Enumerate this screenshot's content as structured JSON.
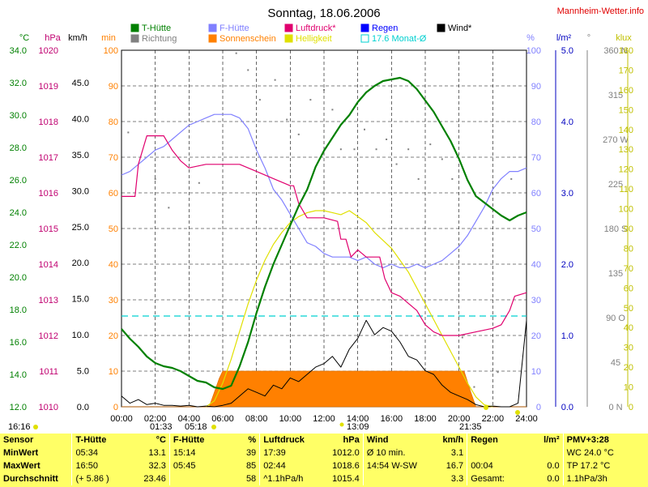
{
  "header": {
    "title": "Sonntag, 18.06.2006",
    "site": "Mannheim-Wetter.info"
  },
  "legend": [
    {
      "label": "T-Hütte",
      "color": "#008000"
    },
    {
      "label": "F-Hütte",
      "color": "#8080ff"
    },
    {
      "label": "Luftdruck*",
      "color": "#e0006e"
    },
    {
      "label": "Regen",
      "color": "#0000ff"
    },
    {
      "label": "Wind*",
      "color": "#000000"
    },
    {
      "label": "Richtung",
      "color": "#808080"
    },
    {
      "label": "Sonnenschein",
      "color": "#ff8000"
    },
    {
      "label": "Helligkeit",
      "color": "#e0e000"
    },
    {
      "label": "17.6 Monat-Ø",
      "color": "#00d0d0"
    }
  ],
  "axis_units": {
    "temp": "°C",
    "pressure": "hPa",
    "wind": "km/h",
    "sun": "min",
    "humidity": "%",
    "rain": "l/m²",
    "direction": "°",
    "light": "klux"
  },
  "axes": {
    "temp": {
      "labels": [
        "12.0",
        "14.0",
        "16.0",
        "18.0",
        "20.0",
        "22.0",
        "24.0",
        "26.0",
        "28.0",
        "30.0",
        "32.0",
        "34.0"
      ],
      "color": "#008000"
    },
    "pressure": {
      "labels": [
        "1010",
        "1011",
        "1012",
        "1013",
        "1014",
        "1015",
        "1016",
        "1017",
        "1018",
        "1019",
        "1020"
      ],
      "color": "#c00070"
    },
    "wind": {
      "labels": [
        "0.0",
        "5.0",
        "10.0",
        "15.0",
        "20.0",
        "25.0",
        "30.0",
        "35.0",
        "40.0",
        "45.0"
      ],
      "color": "#000000"
    },
    "sun": {
      "labels": [
        "0",
        "10",
        "20",
        "30",
        "40",
        "50",
        "60",
        "70",
        "80",
        "90",
        "100"
      ],
      "color": "#ff8000"
    },
    "humidity": {
      "labels": [
        "0",
        "10",
        "20",
        "30",
        "40",
        "50",
        "60",
        "70",
        "80",
        "90",
        "100"
      ],
      "color": "#8080ff"
    },
    "rain": {
      "labels": [
        "0.0",
        "1.0",
        "2.0",
        "3.0",
        "4.0",
        "5.0"
      ],
      "color": "#0000c0"
    },
    "direction": {
      "labels": [
        "0 N",
        "45",
        "90 O",
        "135",
        "180 S",
        "225",
        "270 W",
        "315",
        "360 N"
      ],
      "color": "#808080"
    },
    "light": {
      "labels": [
        "0",
        "10",
        "20",
        "30",
        "40",
        "50",
        "60",
        "70",
        "80",
        "90",
        "100",
        "110",
        "120",
        "130",
        "140",
        "150",
        "160",
        "170",
        "180"
      ],
      "color": "#c0c000"
    },
    "time": {
      "labels": [
        "00:00",
        "02:00",
        "04:00",
        "06:00",
        "08:00",
        "10:00",
        "12:00",
        "14:00",
        "16:00",
        "18:00",
        "20:00",
        "22:00",
        "24:00"
      ]
    }
  },
  "sun_markers": {
    "moonrise": "16:16",
    "sunrise_icon": "01:33",
    "sunrise": "05:18",
    "noon": "13:09",
    "sunset": "21:35"
  },
  "chart_data": {
    "type": "line",
    "x_unit": "hour of day",
    "xlim": [
      0,
      24
    ],
    "monthly_mean_temp": 17.6,
    "series": [
      {
        "name": "T-Hütte",
        "unit": "°C",
        "ylim": [
          12,
          34
        ],
        "x": [
          0,
          0.5,
          1,
          1.5,
          2,
          2.5,
          3,
          3.5,
          4,
          4.5,
          5,
          5.5,
          6,
          6.5,
          7,
          7.5,
          8,
          8.5,
          9,
          9.5,
          10,
          10.5,
          11,
          11.5,
          12,
          12.5,
          13,
          13.5,
          14,
          14.5,
          15,
          15.5,
          16,
          16.5,
          17,
          17.5,
          18,
          18.5,
          19,
          19.5,
          20,
          20.5,
          21,
          21.5,
          22,
          22.5,
          23,
          23.5,
          24
        ],
        "values": [
          16.8,
          16.2,
          15.7,
          15.1,
          14.7,
          14.5,
          14.4,
          14.2,
          13.9,
          13.6,
          13.5,
          13.2,
          13.1,
          13.3,
          14.5,
          16.0,
          17.8,
          19.4,
          20.8,
          22.0,
          23.2,
          24.4,
          25.4,
          26.8,
          27.8,
          28.6,
          29.4,
          30.0,
          30.8,
          31.4,
          31.8,
          32.1,
          32.2,
          32.3,
          32.1,
          31.6,
          30.9,
          30.2,
          29.3,
          28.4,
          27.3,
          26.0,
          25.0,
          24.6,
          24.2,
          23.8,
          23.5,
          23.8,
          24.0
        ]
      },
      {
        "name": "F-Hütte",
        "unit": "%",
        "ylim": [
          0,
          100
        ],
        "x": [
          0,
          0.5,
          1,
          1.5,
          2,
          2.5,
          3,
          3.5,
          4,
          4.5,
          5,
          5.5,
          6,
          6.5,
          7,
          7.5,
          8,
          8.5,
          9,
          9.5,
          10,
          10.5,
          11,
          11.5,
          12,
          12.5,
          13,
          13.5,
          14,
          14.5,
          15,
          15.5,
          16,
          16.5,
          17,
          17.5,
          18,
          18.5,
          19,
          19.5,
          20,
          20.5,
          21,
          21.5,
          22,
          22.5,
          23,
          23.5,
          24
        ],
        "values": [
          65,
          66,
          68,
          70,
          72,
          73,
          75,
          77,
          79,
          80,
          81,
          82,
          82,
          82,
          81,
          78,
          72,
          67,
          61,
          58,
          54,
          50,
          46,
          45,
          43,
          42,
          42,
          42,
          41,
          42,
          40,
          39,
          40,
          39,
          39,
          40,
          39,
          40,
          41,
          43,
          45,
          48,
          52,
          56,
          61,
          64,
          66,
          66,
          67
        ]
      },
      {
        "name": "Luftdruck*",
        "unit": "hPa",
        "ylim": [
          1010,
          1020
        ],
        "x": [
          0,
          0.5,
          0.8,
          1,
          1.5,
          2,
          2.4,
          2.5,
          3,
          3.5,
          4,
          5,
          6,
          7,
          8,
          9,
          10,
          10.2,
          10.5,
          11,
          11.5,
          12,
          12.8,
          13,
          13.3,
          13.6,
          14,
          14.5,
          15,
          15.3,
          15.6,
          16,
          16.5,
          17,
          17.5,
          18,
          18.5,
          19,
          19.5,
          20,
          21,
          22,
          22.5,
          23,
          23.3,
          24
        ],
        "values": [
          1015.9,
          1015.9,
          1015.9,
          1016.8,
          1017.6,
          1017.6,
          1017.6,
          1017.6,
          1017.2,
          1016.9,
          1016.7,
          1016.8,
          1016.8,
          1016.8,
          1016.6,
          1016.4,
          1016.2,
          1016.2,
          1015.7,
          1015.3,
          1015.3,
          1015.3,
          1015.2,
          1014.7,
          1014.7,
          1014.2,
          1014.4,
          1014.2,
          1014.2,
          1014.2,
          1013.6,
          1013.2,
          1013.1,
          1012.9,
          1012.7,
          1012.3,
          1012.1,
          1012.0,
          1012.0,
          1012.0,
          1012.1,
          1012.2,
          1012.3,
          1012.7,
          1013.1,
          1013.2
        ]
      },
      {
        "name": "Wind*",
        "unit": "km/h",
        "ylim": [
          0,
          49.5
        ],
        "x": [
          0,
          0.5,
          1,
          1.5,
          2,
          2.5,
          3,
          3.5,
          4,
          4.5,
          5,
          5.5,
          6,
          6.5,
          7,
          7.5,
          8,
          8.5,
          9,
          9.5,
          10,
          10.5,
          11,
          11.5,
          12,
          12.5,
          13,
          13.5,
          14,
          14.5,
          15,
          15.5,
          16,
          16.5,
          17,
          17.5,
          18,
          18.5,
          19,
          19.5,
          20,
          20.5,
          21,
          21.5,
          22,
          22.5,
          23,
          23.5,
          24
        ],
        "values": [
          1.5,
          0.5,
          1.0,
          0.3,
          0.5,
          0.2,
          0.2,
          0.1,
          0.2,
          0.0,
          0.1,
          0.0,
          0.2,
          0.5,
          1.5,
          2.5,
          2.0,
          1.5,
          3.0,
          2.5,
          4.0,
          3.5,
          4.5,
          5.5,
          6.0,
          7.0,
          5.5,
          8.0,
          9.5,
          12.0,
          10.0,
          11.0,
          10.5,
          9.0,
          7.0,
          6.5,
          5.0,
          4.5,
          3.0,
          2.0,
          1.5,
          1.0,
          0.3,
          0.0,
          0.1,
          0.0,
          0.0,
          0.5,
          12.0
        ]
      },
      {
        "name": "Helligkeit",
        "unit": "klux",
        "ylim": [
          0,
          180
        ],
        "x": [
          5.0,
          5.5,
          6,
          6.5,
          7,
          7.5,
          8,
          8.5,
          9,
          9.5,
          10,
          10.5,
          11,
          11.5,
          12,
          12.5,
          13,
          13.5,
          14,
          14.5,
          15,
          15.5,
          16,
          16.5,
          17,
          17.5,
          18,
          18.5,
          19,
          19.5,
          20,
          20.5,
          21,
          21.5,
          22
        ],
        "values": [
          0,
          3,
          12,
          24,
          38,
          52,
          64,
          74,
          82,
          88,
          93,
          96,
          98,
          99,
          99,
          98,
          97,
          99,
          96,
          93,
          88,
          84,
          80,
          74,
          68,
          60,
          52,
          44,
          36,
          28,
          20,
          12,
          5,
          1,
          0
        ]
      },
      {
        "name": "Sonnenschein",
        "unit": "min",
        "ylim": [
          0,
          100
        ],
        "x": [
          0,
          5.2,
          5.8,
          6,
          7,
          8,
          9,
          10,
          11,
          12,
          13,
          14,
          15,
          16,
          17,
          18,
          19,
          20,
          20.3,
          20.7,
          21,
          24
        ],
        "values": [
          0,
          0,
          8,
          10,
          10,
          10,
          10,
          10,
          10,
          10,
          10,
          10,
          10,
          10,
          10,
          10,
          10,
          10,
          10,
          4,
          0,
          0
        ]
      },
      {
        "name": "Richtung",
        "unit": "°",
        "ylim": [
          0,
          360
        ],
        "x": [
          0.4,
          2.0,
          2.8,
          4.6,
          6.8,
          7.5,
          8.2,
          9.1,
          9.8,
          10.5,
          11.2,
          12.0,
          12.5,
          13.0,
          13.8,
          14.4,
          15.1,
          15.7,
          16.3,
          17.0,
          17.6,
          18.3,
          19.0,
          19.6,
          20.2,
          20.9,
          22.3,
          23.1
        ],
        "values": [
          277,
          230,
          201,
          226,
          357,
          340,
          310,
          330,
          290,
          275,
          310,
          320,
          300,
          260,
          260,
          280,
          260,
          270,
          245,
          260,
          230,
          265,
          250,
          230,
          70,
          20,
          35,
          230
        ]
      }
    ]
  },
  "stats": {
    "header": [
      "Sensor",
      "T-Hütte",
      "°C",
      "F-Hütte",
      "%",
      "Luftdruck",
      "hPa",
      "Wind",
      "km/h",
      "Regen",
      "l/m²",
      "PMV+3:28"
    ],
    "rows": [
      [
        "MinWert",
        "05:34",
        "13.1",
        "15:14",
        "39",
        "17:39",
        "1012.0",
        "Ø 10 min.",
        "3.1",
        "",
        "",
        "WC 24.0 °C"
      ],
      [
        "MaxWert",
        "16:50",
        "32.3",
        "05:45",
        "85",
        "02:44",
        "1018.6",
        "14:54  W-SW",
        "16.7",
        "00:04",
        "0.0",
        "TP 17.2 °C"
      ],
      [
        "Durchschnitt",
        "(+ 5.86 )",
        "23.46",
        "",
        "58",
        "^1.1hPa/h",
        "1015.4",
        "",
        "3.3",
        "Gesamt:",
        "0.0",
        "1.1hPa/3h"
      ]
    ]
  }
}
